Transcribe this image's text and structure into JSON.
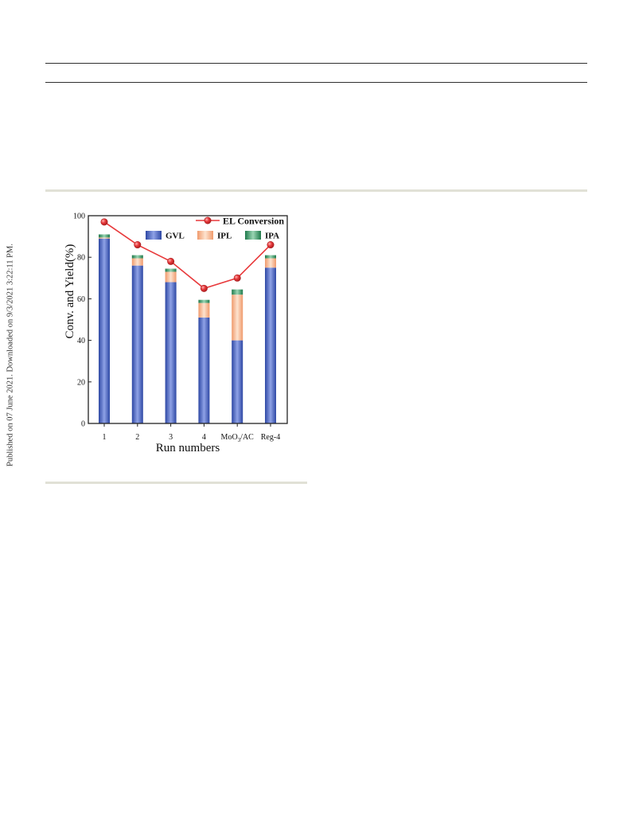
{
  "page": {
    "side_note": "Published on 07 June 2021. Downloaded on 9/3/2021 3:22:11 PM."
  },
  "chart_data": {
    "type": "bar",
    "stacked": true,
    "categories": [
      "1",
      "2",
      "3",
      "4",
      "MoO3/AC",
      "Reg-4"
    ],
    "xlabel": "Run numbers",
    "ylabel": "Conv. and Yield(%)",
    "ylim": [
      0,
      100
    ],
    "yticks": [
      0,
      20,
      40,
      60,
      80,
      100
    ],
    "series": [
      {
        "name": "GVL",
        "color": "#3a54b4",
        "values": [
          89,
          76,
          68,
          51,
          40,
          75
        ]
      },
      {
        "name": "IPL",
        "color": "#f6ad85",
        "values": [
          0.5,
          3.5,
          5,
          7,
          22,
          4.5
        ]
      },
      {
        "name": "IPA",
        "color": "#2f8f5e",
        "values": [
          1.5,
          1.5,
          1.5,
          1.5,
          2.5,
          1.5
        ]
      }
    ],
    "line_series": {
      "name": "EL Conversion",
      "color": "#e8393b",
      "values": [
        97,
        86,
        78,
        65,
        70,
        86
      ]
    },
    "legend_placement": "top-right",
    "grid": false
  }
}
